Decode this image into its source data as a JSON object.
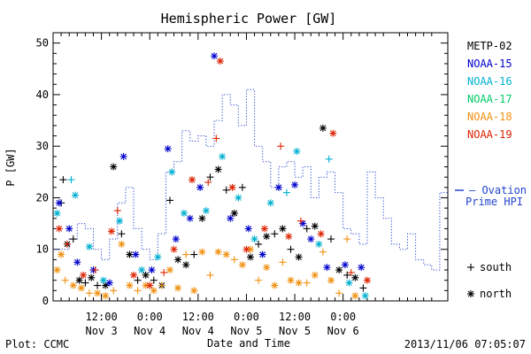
{
  "chart_data": {
    "type": "scatter",
    "title": "Hemispheric Power [GW]",
    "ylabel": "P [GW]",
    "xlabel": "Date and Time",
    "ylim": [
      0,
      52
    ],
    "yticks": [
      0,
      10,
      20,
      30,
      40,
      50
    ],
    "xlim_hours": [
      0,
      98
    ],
    "xticks": [
      {
        "h": 12,
        "line1": "12:00",
        "line2": "Nov 3"
      },
      {
        "h": 24,
        "line1": "0:00",
        "line2": "Nov 4"
      },
      {
        "h": 36,
        "line1": "12:00",
        "line2": "Nov 4"
      },
      {
        "h": 48,
        "line1": "0:00",
        "line2": "Nov 5"
      },
      {
        "h": 60,
        "line1": "12:00",
        "line2": "Nov 5"
      },
      {
        "h": 72,
        "line1": "0:00",
        "line2": "Nov 6"
      }
    ],
    "grid": false,
    "legend_position": "right",
    "series": [
      {
        "name": "METP-02",
        "color": "#000000",
        "points": [
          {
            "x": 2.0,
            "y": 19.0,
            "m": "+"
          },
          {
            "x": 2.5,
            "y": 23.5,
            "m": "+"
          },
          {
            "x": 3.5,
            "y": 11.0,
            "m": "*"
          },
          {
            "x": 5.0,
            "y": 12.0,
            "m": "+"
          },
          {
            "x": 6.5,
            "y": 4.0,
            "m": "*"
          },
          {
            "x": 8.0,
            "y": 3.5,
            "m": "+"
          },
          {
            "x": 9.5,
            "y": 4.5,
            "m": "*"
          },
          {
            "x": 11.0,
            "y": 3.0,
            "m": "+"
          },
          {
            "x": 13.0,
            "y": 3.0,
            "m": "*"
          },
          {
            "x": 15.0,
            "y": 26.0,
            "m": "*"
          },
          {
            "x": 17.0,
            "y": 13.0,
            "m": "+"
          },
          {
            "x": 19.0,
            "y": 9.0,
            "m": "*"
          },
          {
            "x": 21.0,
            "y": 4.0,
            "m": "+"
          },
          {
            "x": 23.0,
            "y": 5.0,
            "m": "*"
          },
          {
            "x": 25.0,
            "y": 4.0,
            "m": "+"
          },
          {
            "x": 27.0,
            "y": 3.0,
            "m": "*"
          },
          {
            "x": 29.0,
            "y": 19.5,
            "m": "+"
          },
          {
            "x": 31.0,
            "y": 8.0,
            "m": "*"
          },
          {
            "x": 33.0,
            "y": 7.0,
            "m": "*"
          },
          {
            "x": 35.0,
            "y": 9.0,
            "m": "+"
          },
          {
            "x": 37.0,
            "y": 16.0,
            "m": "*"
          },
          {
            "x": 39.0,
            "y": 24.0,
            "m": "+"
          },
          {
            "x": 41.0,
            "y": 25.5,
            "m": "*"
          },
          {
            "x": 43.0,
            "y": 21.5,
            "m": "+"
          },
          {
            "x": 45.0,
            "y": 17.0,
            "m": "*"
          },
          {
            "x": 47.0,
            "y": 22.0,
            "m": "+"
          },
          {
            "x": 49.0,
            "y": 8.5,
            "m": "*"
          },
          {
            "x": 51.0,
            "y": 11.0,
            "m": "+"
          },
          {
            "x": 53.0,
            "y": 12.5,
            "m": "*"
          },
          {
            "x": 55.0,
            "y": 13.0,
            "m": "+"
          },
          {
            "x": 57.0,
            "y": 14.0,
            "m": "*"
          },
          {
            "x": 59.0,
            "y": 10.0,
            "m": "+"
          },
          {
            "x": 61.0,
            "y": 8.5,
            "m": "*"
          },
          {
            "x": 63.0,
            "y": 14.0,
            "m": "+"
          },
          {
            "x": 65.0,
            "y": 14.5,
            "m": "*"
          },
          {
            "x": 67.0,
            "y": 33.5,
            "m": "*"
          },
          {
            "x": 69.0,
            "y": 12.0,
            "m": "+"
          },
          {
            "x": 71.0,
            "y": 6.0,
            "m": "*"
          },
          {
            "x": 73.0,
            "y": 5.0,
            "m": "+"
          },
          {
            "x": 75.0,
            "y": 4.5,
            "m": "*"
          },
          {
            "x": 77.0,
            "y": 2.5,
            "m": "+"
          }
        ]
      },
      {
        "name": "NOAA-15",
        "color": "#0000cc",
        "points": [
          {
            "x": 1.5,
            "y": 19.0,
            "m": "*"
          },
          {
            "x": 4.0,
            "y": 14.0,
            "m": "*"
          },
          {
            "x": 6.0,
            "y": 7.5,
            "m": "*"
          },
          {
            "x": 10.0,
            "y": 6.0,
            "m": "*"
          },
          {
            "x": 14.0,
            "y": 3.5,
            "m": "*"
          },
          {
            "x": 17.5,
            "y": 28.0,
            "m": "*"
          },
          {
            "x": 20.5,
            "y": 9.0,
            "m": "*"
          },
          {
            "x": 24.5,
            "y": 6.0,
            "m": "*"
          },
          {
            "x": 28.5,
            "y": 29.5,
            "m": "*"
          },
          {
            "x": 30.5,
            "y": 12.0,
            "m": "*"
          },
          {
            "x": 34.0,
            "y": 16.0,
            "m": "*"
          },
          {
            "x": 36.5,
            "y": 22.0,
            "m": "*"
          },
          {
            "x": 40.0,
            "y": 47.5,
            "m": "*"
          },
          {
            "x": 44.0,
            "y": 16.0,
            "m": "*"
          },
          {
            "x": 48.5,
            "y": 14.0,
            "m": "*"
          },
          {
            "x": 52.0,
            "y": 9.0,
            "m": "*"
          },
          {
            "x": 56.0,
            "y": 22.0,
            "m": "*"
          },
          {
            "x": 60.0,
            "y": 22.5,
            "m": "*"
          },
          {
            "x": 62.0,
            "y": 15.0,
            "m": "*"
          },
          {
            "x": 64.0,
            "y": 12.0,
            "m": "*"
          },
          {
            "x": 68.0,
            "y": 6.5,
            "m": "*"
          },
          {
            "x": 72.5,
            "y": 7.0,
            "m": "*"
          },
          {
            "x": 76.5,
            "y": 6.5,
            "m": "*"
          }
        ]
      },
      {
        "name": "NOAA-16",
        "color": "#00b0d0",
        "points": [
          {
            "x": 1.0,
            "y": 17.0,
            "m": "*"
          },
          {
            "x": 4.5,
            "y": 23.5,
            "m": "+"
          },
          {
            "x": 5.5,
            "y": 20.5,
            "m": "*"
          },
          {
            "x": 9.0,
            "y": 10.5,
            "m": "*"
          },
          {
            "x": 12.5,
            "y": 4.0,
            "m": "*"
          },
          {
            "x": 16.5,
            "y": 15.5,
            "m": "*"
          },
          {
            "x": 22.0,
            "y": 6.0,
            "m": "*"
          },
          {
            "x": 26.0,
            "y": 8.5,
            "m": "*"
          },
          {
            "x": 29.5,
            "y": 25.0,
            "m": "*"
          },
          {
            "x": 32.5,
            "y": 17.0,
            "m": "*"
          },
          {
            "x": 38.0,
            "y": 17.5,
            "m": "*"
          },
          {
            "x": 42.0,
            "y": 28.0,
            "m": "*"
          },
          {
            "x": 46.0,
            "y": 20.0,
            "m": "*"
          },
          {
            "x": 50.0,
            "y": 12.0,
            "m": "*"
          },
          {
            "x": 54.0,
            "y": 19.0,
            "m": "*"
          },
          {
            "x": 58.0,
            "y": 21.0,
            "m": "+"
          },
          {
            "x": 60.5,
            "y": 29.0,
            "m": "*"
          },
          {
            "x": 66.0,
            "y": 11.0,
            "m": "*"
          },
          {
            "x": 68.5,
            "y": 27.5,
            "m": "+"
          },
          {
            "x": 73.5,
            "y": 3.5,
            "m": "*"
          },
          {
            "x": 77.5,
            "y": 1.0,
            "m": "*"
          }
        ]
      },
      {
        "name": "NOAA-17",
        "color": "#00cc66",
        "points": []
      },
      {
        "name": "NOAA-18",
        "color": "#f09010",
        "points": [
          {
            "x": 1.0,
            "y": 6.0,
            "m": "*"
          },
          {
            "x": 2.0,
            "y": 9.0,
            "m": "*"
          },
          {
            "x": 3.0,
            "y": 4.0,
            "m": "+"
          },
          {
            "x": 5.0,
            "y": 3.0,
            "m": "*"
          },
          {
            "x": 7.0,
            "y": 2.5,
            "m": "*"
          },
          {
            "x": 9.0,
            "y": 1.5,
            "m": "+"
          },
          {
            "x": 11.0,
            "y": 1.5,
            "m": "*"
          },
          {
            "x": 13.0,
            "y": 1.0,
            "m": "*"
          },
          {
            "x": 15.0,
            "y": 2.0,
            "m": "+"
          },
          {
            "x": 17.0,
            "y": 11.0,
            "m": "*"
          },
          {
            "x": 19.0,
            "y": 3.0,
            "m": "*"
          },
          {
            "x": 21.0,
            "y": 2.0,
            "m": "+"
          },
          {
            "x": 23.0,
            "y": 3.0,
            "m": "*"
          },
          {
            "x": 25.0,
            "y": 2.0,
            "m": "*"
          },
          {
            "x": 27.0,
            "y": 3.0,
            "m": "+"
          },
          {
            "x": 29.0,
            "y": 6.0,
            "m": "*"
          },
          {
            "x": 31.0,
            "y": 2.5,
            "m": "*"
          },
          {
            "x": 33.0,
            "y": 9.0,
            "m": "+"
          },
          {
            "x": 35.0,
            "y": 2.0,
            "m": "*"
          },
          {
            "x": 37.0,
            "y": 9.5,
            "m": "*"
          },
          {
            "x": 39.0,
            "y": 5.0,
            "m": "+"
          },
          {
            "x": 41.0,
            "y": 9.5,
            "m": "*"
          },
          {
            "x": 43.0,
            "y": 9.0,
            "m": "*"
          },
          {
            "x": 45.0,
            "y": 8.0,
            "m": "+"
          },
          {
            "x": 47.0,
            "y": 7.0,
            "m": "*"
          },
          {
            "x": 49.0,
            "y": 10.0,
            "m": "*"
          },
          {
            "x": 51.0,
            "y": 4.0,
            "m": "+"
          },
          {
            "x": 53.0,
            "y": 6.5,
            "m": "*"
          },
          {
            "x": 55.0,
            "y": 3.0,
            "m": "*"
          },
          {
            "x": 57.0,
            "y": 7.5,
            "m": "+"
          },
          {
            "x": 59.0,
            "y": 4.0,
            "m": "*"
          },
          {
            "x": 61.0,
            "y": 3.5,
            "m": "*"
          },
          {
            "x": 63.0,
            "y": 3.5,
            "m": "+"
          },
          {
            "x": 65.0,
            "y": 5.0,
            "m": "*"
          },
          {
            "x": 67.0,
            "y": 9.5,
            "m": "+"
          },
          {
            "x": 69.0,
            "y": 4.0,
            "m": "*"
          },
          {
            "x": 71.0,
            "y": 1.5,
            "m": "+"
          },
          {
            "x": 73.0,
            "y": 12.0,
            "m": "+"
          },
          {
            "x": 75.0,
            "y": 1.0,
            "m": "*"
          }
        ]
      },
      {
        "name": "NOAA-19",
        "color": "#dd2200",
        "points": [
          {
            "x": 1.5,
            "y": 14.0,
            "m": "*"
          },
          {
            "x": 3.5,
            "y": 11.0,
            "m": "+"
          },
          {
            "x": 7.5,
            "y": 5.0,
            "m": "*"
          },
          {
            "x": 10.5,
            "y": 6.0,
            "m": "+"
          },
          {
            "x": 14.5,
            "y": 13.5,
            "m": "*"
          },
          {
            "x": 16.0,
            "y": 17.5,
            "m": "+"
          },
          {
            "x": 20.0,
            "y": 5.0,
            "m": "*"
          },
          {
            "x": 24.0,
            "y": 3.0,
            "m": "*"
          },
          {
            "x": 27.5,
            "y": 5.5,
            "m": "+"
          },
          {
            "x": 30.0,
            "y": 10.0,
            "m": "*"
          },
          {
            "x": 34.5,
            "y": 23.5,
            "m": "*"
          },
          {
            "x": 38.5,
            "y": 23.0,
            "m": "+"
          },
          {
            "x": 40.5,
            "y": 31.5,
            "m": "+"
          },
          {
            "x": 41.5,
            "y": 46.5,
            "m": "*"
          },
          {
            "x": 44.5,
            "y": 22.0,
            "m": "*"
          },
          {
            "x": 48.0,
            "y": 10.0,
            "m": "*"
          },
          {
            "x": 52.5,
            "y": 14.0,
            "m": "*"
          },
          {
            "x": 56.5,
            "y": 30.0,
            "m": "+"
          },
          {
            "x": 58.5,
            "y": 12.5,
            "m": "*"
          },
          {
            "x": 61.5,
            "y": 15.5,
            "m": "+"
          },
          {
            "x": 66.5,
            "y": 13.0,
            "m": "*"
          },
          {
            "x": 69.5,
            "y": 32.5,
            "m": "*"
          },
          {
            "x": 74.0,
            "y": 5.5,
            "m": "+"
          },
          {
            "x": 78.0,
            "y": 4.0,
            "m": "*"
          }
        ]
      }
    ],
    "ovation": {
      "name": "Ovation",
      "name_line2": "Prime HPI",
      "color": "#2244cc",
      "steps": [
        [
          0,
          10
        ],
        [
          2,
          10
        ],
        [
          4,
          12
        ],
        [
          6,
          15
        ],
        [
          8,
          14
        ],
        [
          10,
          10
        ],
        [
          12,
          8
        ],
        [
          14,
          12
        ],
        [
          16,
          19
        ],
        [
          18,
          22
        ],
        [
          20,
          14
        ],
        [
          22,
          10
        ],
        [
          24,
          8
        ],
        [
          26,
          13
        ],
        [
          28,
          25
        ],
        [
          30,
          27
        ],
        [
          32,
          33
        ],
        [
          34,
          31
        ],
        [
          36,
          32
        ],
        [
          38,
          30
        ],
        [
          40,
          35
        ],
        [
          42,
          40
        ],
        [
          44,
          38
        ],
        [
          46,
          34
        ],
        [
          48,
          41
        ],
        [
          50,
          30
        ],
        [
          52,
          27
        ],
        [
          54,
          22
        ],
        [
          56,
          26
        ],
        [
          58,
          27
        ],
        [
          60,
          24
        ],
        [
          62,
          26
        ],
        [
          64,
          20
        ],
        [
          66,
          24
        ],
        [
          68,
          25
        ],
        [
          70,
          21
        ],
        [
          72,
          14
        ],
        [
          74,
          13
        ],
        [
          76,
          11
        ],
        [
          78,
          25
        ],
        [
          80,
          20
        ],
        [
          82,
          16
        ],
        [
          84,
          11
        ],
        [
          86,
          10
        ],
        [
          88,
          13
        ],
        [
          90,
          8
        ],
        [
          92,
          7
        ],
        [
          94,
          6
        ],
        [
          96,
          21
        ],
        [
          98,
          21
        ]
      ]
    },
    "marker_legend": [
      {
        "symbol": "+",
        "label": "south"
      },
      {
        "symbol": "*",
        "label": "north"
      }
    ]
  },
  "footer": {
    "left": "Plot: CCMC",
    "right": "2013/11/06 07:05:07"
  }
}
